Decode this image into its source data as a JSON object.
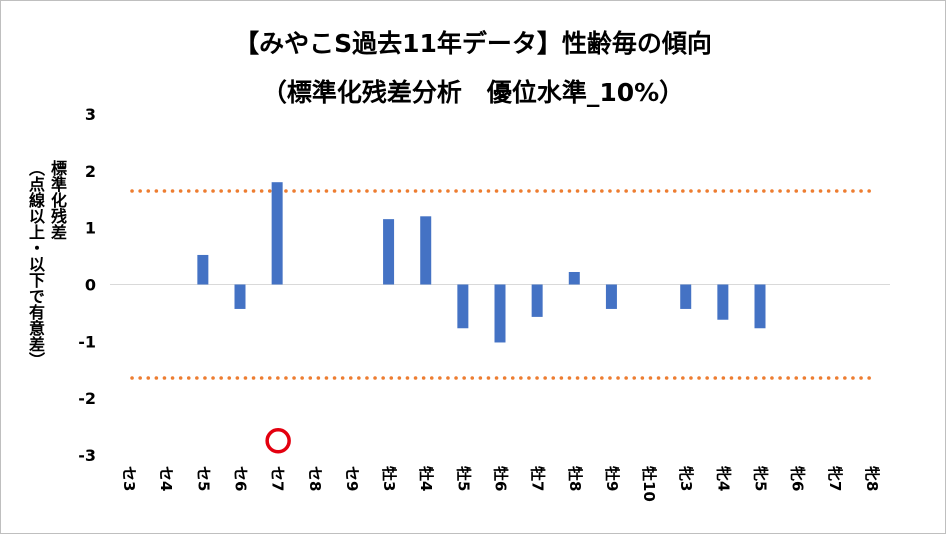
{
  "chart_data": {
    "type": "bar",
    "title": "【みやこS過去11年データ】性齢毎の傾向",
    "subtitle": "（標準化残差分析　優位水準_10%）",
    "ylabel_main": "標準化残差",
    "ylabel_sub": "（点線以上・以下で有意差）",
    "ylim": [
      -3,
      3
    ],
    "yticks": [
      3,
      2,
      1,
      0,
      -1,
      -2,
      -3
    ],
    "threshold_lines": [
      1.645,
      -1.645
    ],
    "categories": [
      "セ3",
      "セ4",
      "セ5",
      "セ6",
      "セ7",
      "セ8",
      "セ9",
      "牡3",
      "牡4",
      "牡5",
      "牡6",
      "牡7",
      "牡8",
      "牡9",
      "牡10",
      "牝3",
      "牝4",
      "牝5",
      "牝6",
      "牝7",
      "牝8"
    ],
    "values": [
      0,
      0,
      0.52,
      -0.43,
      1.8,
      0,
      0,
      1.15,
      1.2,
      -0.77,
      -1.02,
      -0.57,
      0.22,
      -0.43,
      0,
      -0.43,
      -0.62,
      -0.77,
      0,
      0,
      0
    ],
    "highlight_marker": {
      "category": "セ7",
      "value": -2.75
    },
    "colors": {
      "bar": "#4472c4",
      "threshold": "#ed7d31",
      "marker_ring": "#e3000f",
      "axis": "#d9d9d9"
    }
  }
}
